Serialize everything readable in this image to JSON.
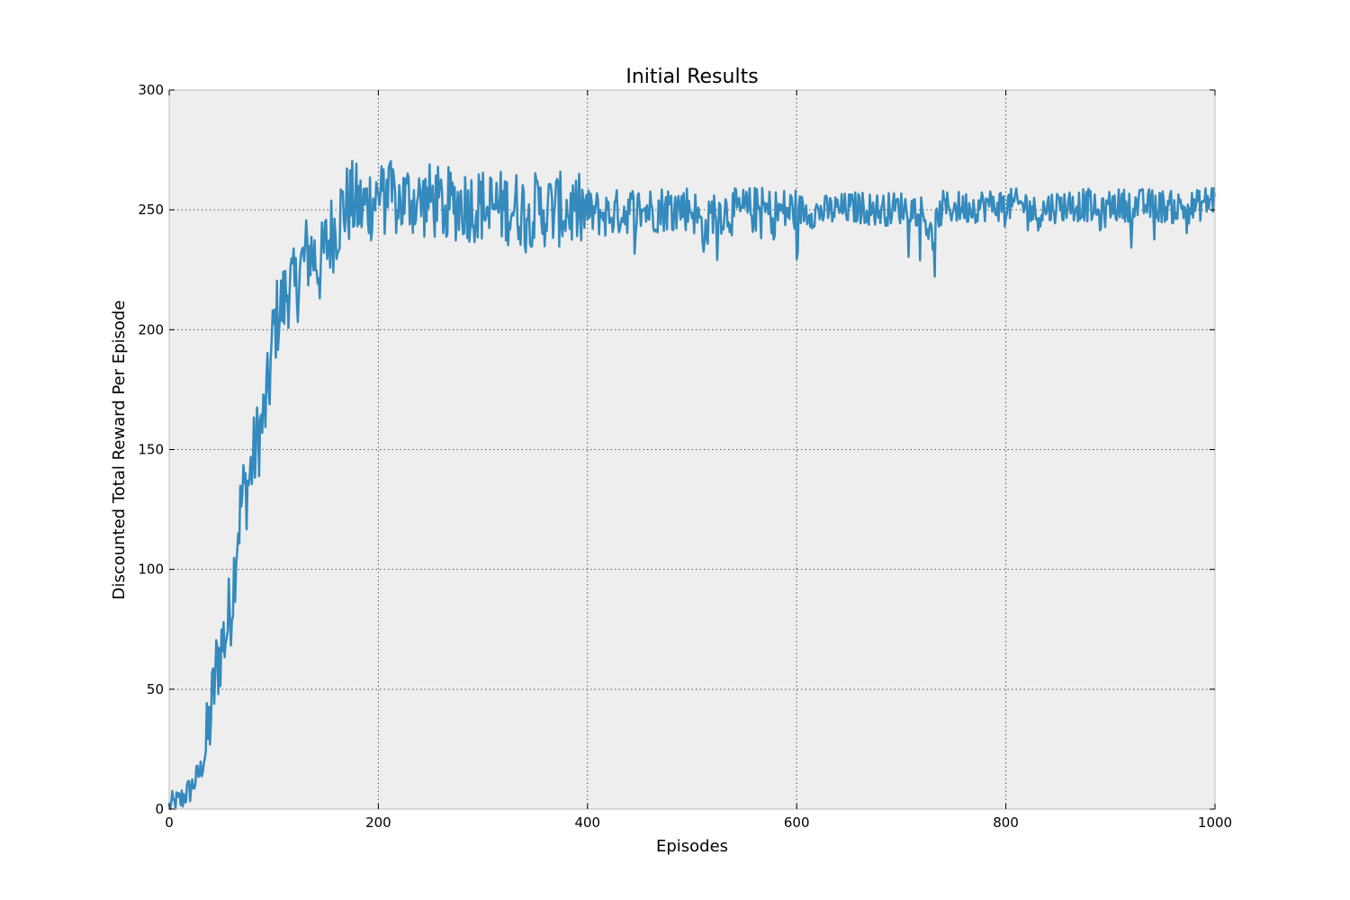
{
  "chart_data": {
    "type": "line",
    "title": "Initial Results",
    "xlabel": "Episodes",
    "ylabel": "Discounted Total Reward Per Episode",
    "xlim": [
      0,
      1000
    ],
    "ylim": [
      0,
      300
    ],
    "xticks": [
      0,
      200,
      400,
      600,
      800,
      1000
    ],
    "yticks": [
      0,
      50,
      100,
      150,
      200,
      250,
      300
    ],
    "grid": true,
    "legend": "none",
    "colors": {
      "line": "#348abd",
      "plot_bg": "#eeeeee",
      "frame": "#bcbcbc"
    },
    "series": [
      {
        "x": [
          0,
          5,
          10,
          15,
          20,
          25,
          30,
          35,
          40,
          45,
          50,
          55,
          60,
          65,
          70,
          75,
          80,
          85,
          90,
          95,
          100,
          105,
          110,
          115,
          120,
          125,
          130,
          135,
          140,
          145,
          150,
          155,
          160,
          165,
          170,
          175,
          180,
          185,
          190,
          195,
          200,
          210,
          220,
          230,
          240,
          250,
          260,
          270,
          280,
          290,
          300,
          310,
          320,
          330,
          340,
          350,
          360,
          380,
          400,
          420,
          440,
          460,
          480,
          500,
          513,
          520,
          540,
          560,
          580,
          600,
          620,
          640,
          660,
          680,
          700,
          720,
          730,
          735,
          740,
          760,
          780,
          800,
          820,
          830,
          840,
          860,
          880,
          890,
          900,
          920,
          940,
          960,
          980,
          1000
        ],
        "values": [
          1,
          2,
          3,
          6,
          8,
          12,
          16,
          24,
          40,
          58,
          68,
          75,
          88,
          115,
          130,
          135,
          145,
          155,
          162,
          175,
          200,
          208,
          212,
          220,
          215,
          225,
          230,
          233,
          230,
          226,
          235,
          240,
          244,
          250,
          252,
          253,
          252,
          250,
          253,
          255,
          254,
          255,
          253,
          255,
          253,
          254,
          252,
          252,
          253,
          252,
          252,
          251,
          251,
          251,
          250,
          250,
          250,
          250,
          249,
          248,
          250,
          250,
          251,
          251,
          240,
          250,
          249,
          250,
          249,
          250,
          249,
          250,
          251,
          250,
          251,
          250,
          237,
          247,
          251,
          251,
          252,
          252,
          252,
          248,
          251,
          252,
          252,
          247,
          252,
          252,
          252,
          251,
          251,
          255
        ]
      }
    ]
  }
}
